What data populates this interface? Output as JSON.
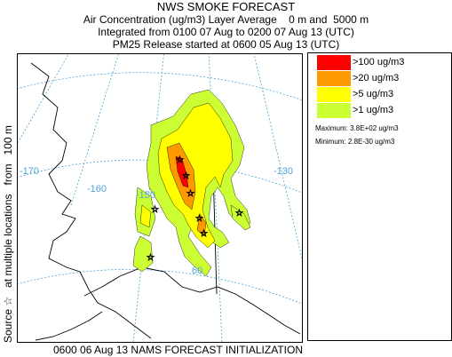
{
  "header": {
    "title": "NWS SMOKE FORECAST",
    "line1": "Air Concentration (ug/m3) Layer Average    0 m and  5000 m",
    "line2": "Integrated from 0100 07 Aug to 0200 07 Aug 13 (UTC)",
    "line3": "PM25 Release started at 0600 05 Aug 13 (UTC)"
  },
  "side_label": "Source ☆   at multiple locations   from   100 m",
  "map": {
    "longitude_labels": [
      "-170",
      "-160",
      "-150",
      "-130"
    ],
    "latitude_labels": [
      "60"
    ],
    "colors": {
      "land": "#000000",
      "grid": "#4aa3d6",
      "lt1": "#ccff33",
      "gt5": "#ffff00",
      "gt20": "#ff9900",
      "gt100": "#ff0000"
    }
  },
  "legend": {
    "items": [
      {
        "label": ">100 ug/m3",
        "color": "#ff0000"
      },
      {
        "label": ">20 ug/m3",
        "color": "#ff9900"
      },
      {
        "label": ">5 ug/m3",
        "color": "#ffff00"
      },
      {
        "label": ">1 ug/m3",
        "color": "#ccff33"
      }
    ],
    "maximum": "Maximum: 3.8E+02 ug/m3",
    "minimum": "Minimum: 2.8E-30 ug/m3"
  },
  "footer": "0600 06 Aug 13 NAMS FORECAST INITIALIZATION"
}
